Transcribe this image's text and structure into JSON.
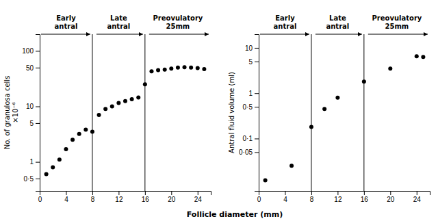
{
  "chart_data": [
    {
      "type": "scatter",
      "x": [
        1,
        2,
        3,
        4,
        5,
        6,
        7,
        8,
        9,
        10,
        11,
        12,
        13,
        14,
        15,
        16,
        17,
        18,
        19,
        20,
        21,
        22,
        23,
        24,
        25
      ],
      "values": [
        0.6,
        0.8,
        1.1,
        1.7,
        2.5,
        3.2,
        3.8,
        3.5,
        7.0,
        9.0,
        10.0,
        11.5,
        12.5,
        13.5,
        14.5,
        25.0,
        43.0,
        45.0,
        46.0,
        48.0,
        50.0,
        51.0,
        50.0,
        49.0,
        47.0
      ],
      "color": "black",
      "y_label": "No. of granulosa cells\n×10⁻⁶",
      "x_label": "Follicle diameter (mm)",
      "xlim": [
        0,
        26
      ],
      "xticks": [
        0,
        4,
        8,
        12,
        16,
        20,
        24
      ],
      "ylim": [
        0.3,
        200
      ],
      "yticks": [
        {
          "value": 0.5,
          "label": "0·5"
        },
        1,
        5,
        10,
        50,
        100
      ],
      "log": "y",
      "grid": false,
      "vlines": [
        8,
        16
      ],
      "annotations": [
        "Early\nantral",
        "Late\nantral",
        "Preovulatory\n25mm"
      ]
    },
    {
      "type": "scatter",
      "x": [
        1,
        5,
        8,
        10,
        12,
        16,
        20,
        24,
        25
      ],
      "values": [
        0.012,
        0.025,
        0.18,
        0.45,
        0.8,
        1.8,
        3.5,
        6.5,
        6.3
      ],
      "color": "black",
      "y_label": "Antral fluid volume (ml)",
      "xlim": [
        0,
        26
      ],
      "xticks": [
        0,
        4,
        8,
        12,
        16,
        20,
        24
      ],
      "ylim": [
        0.007,
        20
      ],
      "yticks": [
        {
          "value": 0.05,
          "label": "0·05"
        },
        {
          "value": 0.1,
          "label": "0·1"
        },
        {
          "value": 0.5,
          "label": "0·5"
        },
        1,
        5,
        10
      ],
      "log": "y",
      "grid": false,
      "vlines": [
        8,
        16
      ],
      "annotations": [
        "Early\nantral",
        "Late\nantral",
        "Preovulatory\n25mm"
      ]
    }
  ]
}
